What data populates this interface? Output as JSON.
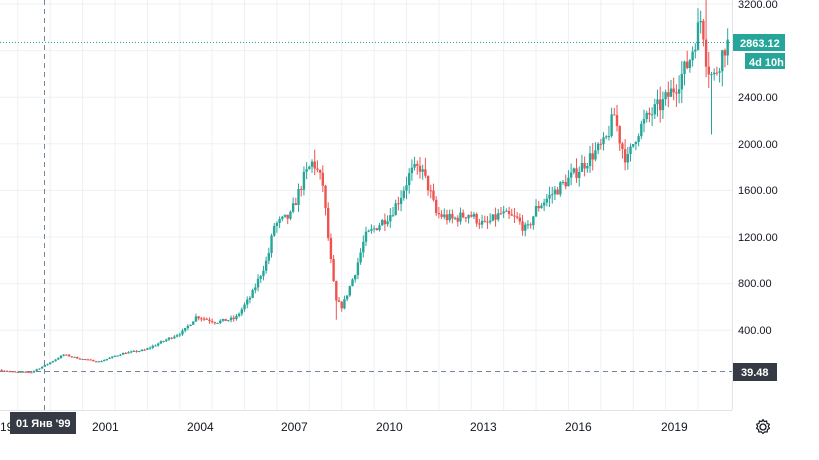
{
  "colors": {
    "up": "#26a69a",
    "down": "#ef5350",
    "grid": "#eef0f3",
    "axis_text": "#131722",
    "price_line": "#26a69a",
    "crosshair": "#758696",
    "crosshair_label_bg": "#363a45",
    "background": "#ffffff"
  },
  "price_axis": {
    "ticks": [
      "3200.00",
      "2400.00",
      "2000.00",
      "1600.00",
      "1200.00",
      "800.00",
      "400.00"
    ]
  },
  "time_axis": {
    "labels": [
      "2001",
      "2004",
      "2007",
      "2010",
      "2013",
      "2016",
      "2019"
    ],
    "left_edge_label": "19"
  },
  "last_price": {
    "value": "2863.12",
    "countdown": "4d 10h"
  },
  "crosshair": {
    "price": "39.48",
    "date": "01 Янв '99"
  },
  "settings_icon": "gear-icon",
  "chart_data": {
    "type": "candlestick",
    "title": "",
    "xlabel": "",
    "ylabel": "",
    "timeframe_note": "monthly",
    "x_range": [
      1998.45,
      2021.05
    ],
    "ylim": [
      0,
      3350
    ],
    "grid": true,
    "anchors": [
      [
        1998.5,
        60
      ],
      [
        1999.0,
        39
      ],
      [
        1999.5,
        40
      ],
      [
        2000.0,
        110
      ],
      [
        2000.5,
        190
      ],
      [
        2001.0,
        155
      ],
      [
        2001.6,
        130
      ],
      [
        2002.3,
        200
      ],
      [
        2003.0,
        230
      ],
      [
        2003.6,
        310
      ],
      [
        2004.2,
        390
      ],
      [
        2004.6,
        520
      ],
      [
        2005.2,
        470
      ],
      [
        2005.8,
        500
      ],
      [
        2006.3,
        700
      ],
      [
        2006.8,
        1020
      ],
      [
        2007.0,
        1300
      ],
      [
        2007.5,
        1380
      ],
      [
        2007.9,
        1700
      ],
      [
        2008.2,
        1850
      ],
      [
        2008.5,
        1650
      ],
      [
        2008.7,
        1100
      ],
      [
        2008.9,
        650
      ],
      [
        2009.1,
        600
      ],
      [
        2009.5,
        900
      ],
      [
        2009.8,
        1200
      ],
      [
        2010.2,
        1300
      ],
      [
        2010.6,
        1400
      ],
      [
        2010.9,
        1550
      ],
      [
        2011.2,
        1750
      ],
      [
        2011.5,
        1800
      ],
      [
        2011.8,
        1600
      ],
      [
        2012.0,
        1400
      ],
      [
        2012.5,
        1350
      ],
      [
        2013.0,
        1400
      ],
      [
        2013.5,
        1300
      ],
      [
        2014.0,
        1400
      ],
      [
        2014.5,
        1350
      ],
      [
        2014.8,
        1250
      ],
      [
        2015.1,
        1450
      ],
      [
        2015.5,
        1550
      ],
      [
        2015.9,
        1650
      ],
      [
        2016.3,
        1750
      ],
      [
        2016.8,
        1900
      ],
      [
        2017.2,
        2000
      ],
      [
        2017.5,
        2250
      ],
      [
        2017.7,
        2000
      ],
      [
        2017.9,
        1850
      ],
      [
        2018.2,
        2100
      ],
      [
        2018.6,
        2250
      ],
      [
        2019.0,
        2350
      ],
      [
        2019.4,
        2500
      ],
      [
        2019.8,
        2700
      ],
      [
        2020.0,
        2900
      ],
      [
        2020.2,
        3100
      ],
      [
        2020.35,
        2700
      ],
      [
        2020.55,
        2550
      ],
      [
        2020.8,
        2750
      ],
      [
        2020.95,
        2860
      ]
    ],
    "notable": {
      "low_1999": 39.48,
      "peak_2008_high": 1950,
      "trough_2008_low": 490,
      "peak_2011_high": 1880,
      "low_2014": 1180,
      "high_2020": 3250,
      "wick_2020_low": 2080,
      "last": 2863.12
    }
  }
}
